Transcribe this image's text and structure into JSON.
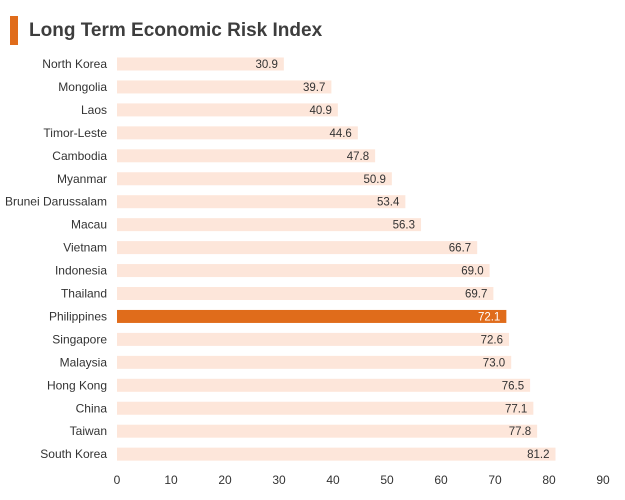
{
  "title": "Long Term Economic Risk Index",
  "colors": {
    "accent": "#e06c1b",
    "bar": "#fde6da",
    "highlight_bar": "#e06c1b"
  },
  "chart_data": {
    "type": "bar",
    "orientation": "horizontal",
    "title": "Long Term Economic Risk Index",
    "categories": [
      "North Korea",
      "Mongolia",
      "Laos",
      "Timor-Leste",
      "Cambodia",
      "Myanmar",
      "Brunei Darussalam",
      "Macau",
      "Vietnam",
      "Indonesia",
      "Thailand",
      "Philippines",
      "Singapore",
      "Malaysia",
      "Hong Kong",
      "China",
      "Taiwan",
      "South Korea"
    ],
    "values": [
      30.9,
      39.7,
      40.9,
      44.6,
      47.8,
      50.9,
      53.4,
      56.3,
      66.7,
      69.0,
      69.7,
      72.1,
      72.6,
      73.0,
      76.5,
      77.1,
      77.8,
      81.2
    ],
    "value_labels": [
      "30.9",
      "39.7",
      "40.9",
      "44.6",
      "47.8",
      "50.9",
      "53.4",
      "56.3",
      "66.7",
      "69.0",
      "69.7",
      "72.1",
      "72.6",
      "73.0",
      "76.5",
      "77.1",
      "77.8",
      "81.2"
    ],
    "highlight": "Philippines",
    "xlim": [
      0,
      90
    ],
    "xticks": [
      0,
      10,
      20,
      30,
      40,
      50,
      60,
      70,
      80,
      90
    ],
    "xlabel": "",
    "ylabel": "",
    "grid": false,
    "legend": "none"
  }
}
